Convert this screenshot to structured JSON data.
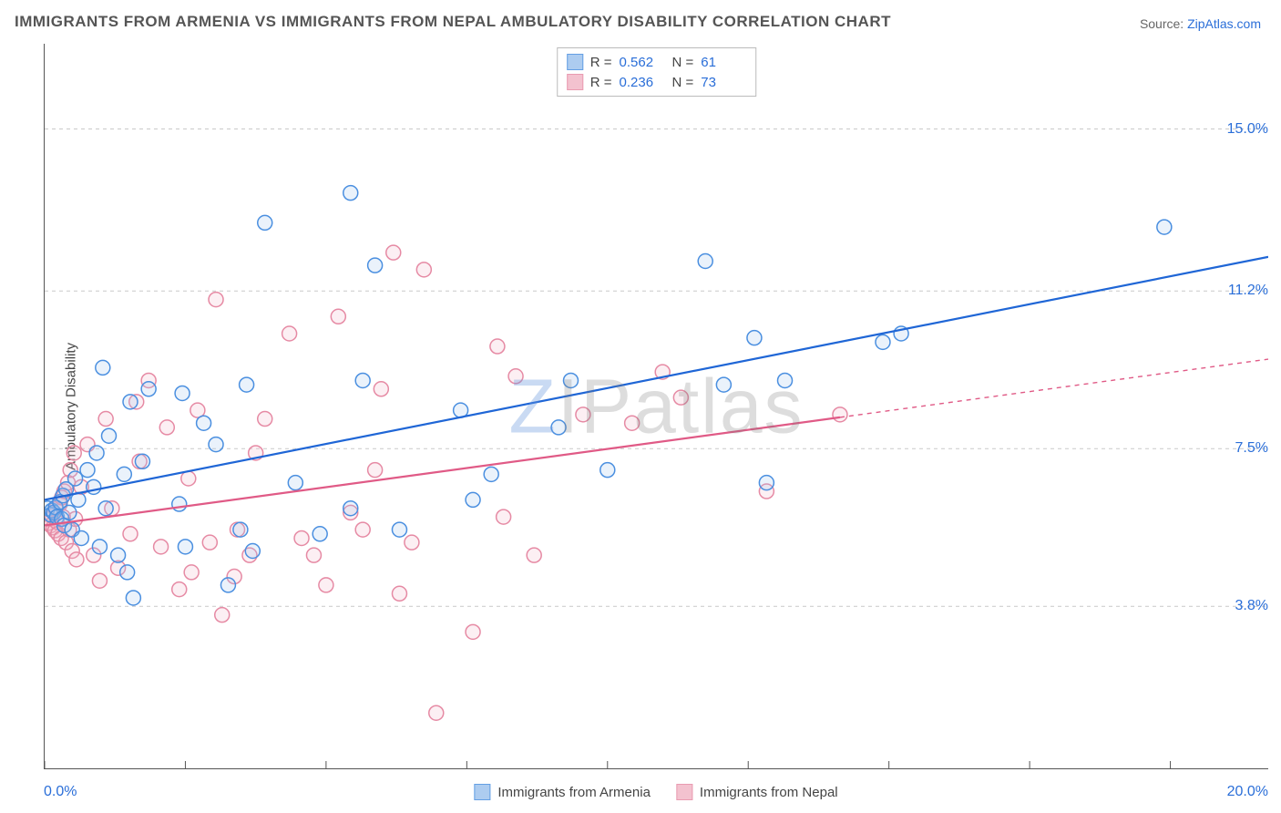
{
  "title": "IMMIGRANTS FROM ARMENIA VS IMMIGRANTS FROM NEPAL AMBULATORY DISABILITY CORRELATION CHART",
  "source_prefix": "Source: ",
  "source_link": "ZipAtlas.com",
  "y_axis_label": "Ambulatory Disability",
  "watermark": {
    "z": "Z",
    "ip": "IP",
    "rest": "atlas"
  },
  "chart": {
    "type": "scatter",
    "xlim": [
      0,
      20
    ],
    "ylim": [
      0,
      17
    ],
    "xtick_positions": [
      0,
      2.3,
      4.6,
      6.9,
      9.2,
      11.5,
      13.8,
      16.1,
      18.4
    ],
    "y_gridlines": [
      {
        "v": 3.8,
        "label": "3.8%"
      },
      {
        "v": 7.5,
        "label": "7.5%"
      },
      {
        "v": 11.2,
        "label": "11.2%"
      },
      {
        "v": 15.0,
        "label": "15.0%"
      }
    ],
    "x_min_label": "0.0%",
    "x_max_label": "20.0%",
    "grid_color": "#c9c9c9",
    "background_color": "#ffffff",
    "marker_radius": 8,
    "marker_stroke_width": 1.5,
    "marker_fill_opacity": 0.22,
    "line_width": 2.2,
    "series": [
      {
        "key": "armenia",
        "label": "Immigrants from Armenia",
        "color_stroke": "#4a8fe0",
        "color_fill": "#9fc4ee",
        "line_color": "#1f66d6",
        "r_value": "0.562",
        "n_value": "61",
        "trend": {
          "x1": 0,
          "y1": 6.3,
          "x2": 20,
          "y2": 12.0,
          "solid_until_x": 20
        },
        "points": [
          [
            0.05,
            6.1
          ],
          [
            0.1,
            5.95
          ],
          [
            0.12,
            6.05
          ],
          [
            0.15,
            6.0
          ],
          [
            0.18,
            6.12
          ],
          [
            0.2,
            5.9
          ],
          [
            0.25,
            6.25
          ],
          [
            0.28,
            5.85
          ],
          [
            0.3,
            6.4
          ],
          [
            0.32,
            5.7
          ],
          [
            0.35,
            6.55
          ],
          [
            0.4,
            6.0
          ],
          [
            0.45,
            5.6
          ],
          [
            0.5,
            6.8
          ],
          [
            0.55,
            6.3
          ],
          [
            0.6,
            5.4
          ],
          [
            0.7,
            7.0
          ],
          [
            0.8,
            6.6
          ],
          [
            0.85,
            7.4
          ],
          [
            0.9,
            5.2
          ],
          [
            0.95,
            9.4
          ],
          [
            1.0,
            6.1
          ],
          [
            1.05,
            7.8
          ],
          [
            1.2,
            5.0
          ],
          [
            1.3,
            6.9
          ],
          [
            1.35,
            4.6
          ],
          [
            1.4,
            8.6
          ],
          [
            1.45,
            4.0
          ],
          [
            1.6,
            7.2
          ],
          [
            1.7,
            8.9
          ],
          [
            2.2,
            6.2
          ],
          [
            2.25,
            8.8
          ],
          [
            2.3,
            5.2
          ],
          [
            2.6,
            8.1
          ],
          [
            2.8,
            7.6
          ],
          [
            3.0,
            4.3
          ],
          [
            3.2,
            5.6
          ],
          [
            3.3,
            9.0
          ],
          [
            3.4,
            5.1
          ],
          [
            3.6,
            12.8
          ],
          [
            4.1,
            6.7
          ],
          [
            4.5,
            5.5
          ],
          [
            5.0,
            6.1
          ],
          [
            5.0,
            13.5
          ],
          [
            5.2,
            9.1
          ],
          [
            5.4,
            11.8
          ],
          [
            5.8,
            5.6
          ],
          [
            6.8,
            8.4
          ],
          [
            7.0,
            6.3
          ],
          [
            7.3,
            6.9
          ],
          [
            8.4,
            8.0
          ],
          [
            8.6,
            9.1
          ],
          [
            9.2,
            7.0
          ],
          [
            10.8,
            11.9
          ],
          [
            11.1,
            9.0
          ],
          [
            11.6,
            10.1
          ],
          [
            11.8,
            6.7
          ],
          [
            12.1,
            9.1
          ],
          [
            13.7,
            10.0
          ],
          [
            14.0,
            10.2
          ],
          [
            18.3,
            12.7
          ]
        ]
      },
      {
        "key": "nepal",
        "label": "Immigrants from Nepal",
        "color_stroke": "#e68aa4",
        "color_fill": "#f2b8c7",
        "line_color": "#e05a86",
        "r_value": "0.236",
        "n_value": "73",
        "trend": {
          "x1": 0,
          "y1": 5.7,
          "x2": 20,
          "y2": 9.6,
          "solid_until_x": 13.0
        },
        "points": [
          [
            0.05,
            5.75
          ],
          [
            0.08,
            5.85
          ],
          [
            0.1,
            5.7
          ],
          [
            0.12,
            5.92
          ],
          [
            0.14,
            5.65
          ],
          [
            0.15,
            6.0
          ],
          [
            0.17,
            5.58
          ],
          [
            0.18,
            6.08
          ],
          [
            0.2,
            5.78
          ],
          [
            0.22,
            5.5
          ],
          [
            0.25,
            6.2
          ],
          [
            0.27,
            5.4
          ],
          [
            0.28,
            6.35
          ],
          [
            0.3,
            5.9
          ],
          [
            0.32,
            6.5
          ],
          [
            0.35,
            5.3
          ],
          [
            0.38,
            6.7
          ],
          [
            0.4,
            5.6
          ],
          [
            0.42,
            7.0
          ],
          [
            0.45,
            5.1
          ],
          [
            0.48,
            7.4
          ],
          [
            0.5,
            5.85
          ],
          [
            0.52,
            4.9
          ],
          [
            0.6,
            6.6
          ],
          [
            0.7,
            7.6
          ],
          [
            0.8,
            5.0
          ],
          [
            0.9,
            4.4
          ],
          [
            1.0,
            8.2
          ],
          [
            1.1,
            6.1
          ],
          [
            1.2,
            4.7
          ],
          [
            1.4,
            5.5
          ],
          [
            1.5,
            8.6
          ],
          [
            1.55,
            7.2
          ],
          [
            1.7,
            9.1
          ],
          [
            1.9,
            5.2
          ],
          [
            2.0,
            8.0
          ],
          [
            2.2,
            4.2
          ],
          [
            2.35,
            6.8
          ],
          [
            2.4,
            4.6
          ],
          [
            2.5,
            8.4
          ],
          [
            2.7,
            5.3
          ],
          [
            2.8,
            11.0
          ],
          [
            2.9,
            3.6
          ],
          [
            3.1,
            4.5
          ],
          [
            3.15,
            5.6
          ],
          [
            3.35,
            5.0
          ],
          [
            3.45,
            7.4
          ],
          [
            3.6,
            8.2
          ],
          [
            4.0,
            10.2
          ],
          [
            4.2,
            5.4
          ],
          [
            4.4,
            5.0
          ],
          [
            4.6,
            4.3
          ],
          [
            4.8,
            10.6
          ],
          [
            5.0,
            6.0
          ],
          [
            5.2,
            5.6
          ],
          [
            5.4,
            7.0
          ],
          [
            5.5,
            8.9
          ],
          [
            5.7,
            12.1
          ],
          [
            5.8,
            4.1
          ],
          [
            6.0,
            5.3
          ],
          [
            6.2,
            11.7
          ],
          [
            6.4,
            1.3
          ],
          [
            7.0,
            3.2
          ],
          [
            7.4,
            9.9
          ],
          [
            7.5,
            5.9
          ],
          [
            7.7,
            9.2
          ],
          [
            8.0,
            5.0
          ],
          [
            8.8,
            8.3
          ],
          [
            9.6,
            8.1
          ],
          [
            10.1,
            9.3
          ],
          [
            10.4,
            8.7
          ],
          [
            11.8,
            6.5
          ],
          [
            13.0,
            8.3
          ]
        ]
      }
    ],
    "top_legend_labels": {
      "r": "R =",
      "n": "N ="
    }
  }
}
